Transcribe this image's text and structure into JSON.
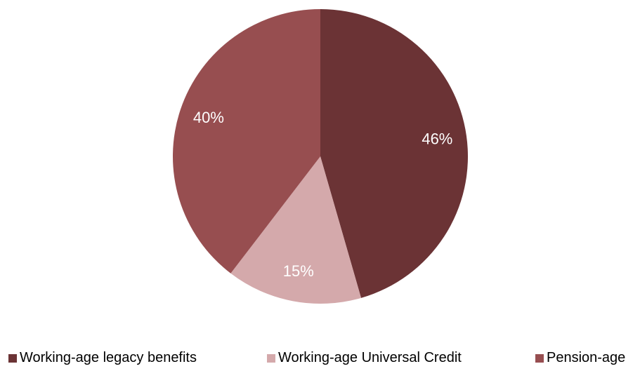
{
  "chart_data": {
    "type": "pie",
    "title": "",
    "start_angle_deg": 0,
    "direction": "clockwise",
    "legend_position": "bottom",
    "slices": [
      {
        "name": "Working-age legacy benefits",
        "value": 46,
        "label": "46%",
        "color": "#6b3335"
      },
      {
        "name": "Working-age Universal Credit",
        "value": 15,
        "label": "15%",
        "color": "#d4a9ab"
      },
      {
        "name": "Pension-age",
        "value": 40,
        "label": "40%",
        "color": "#974e50"
      }
    ]
  }
}
